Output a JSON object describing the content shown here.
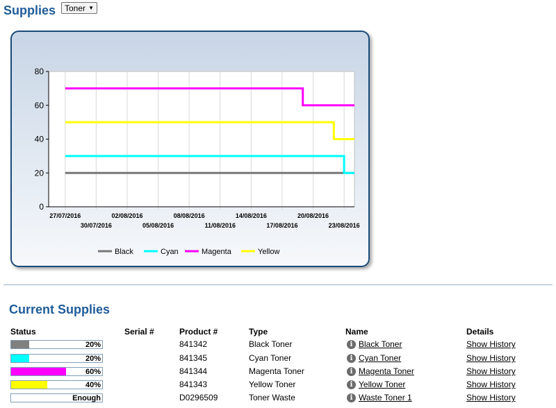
{
  "header": {
    "title": "Supplies",
    "selected_supply_type": "Toner"
  },
  "chart_data": {
    "type": "line",
    "step": true,
    "ylim": [
      0,
      80
    ],
    "yticks": [
      0,
      20,
      40,
      60,
      80
    ],
    "xticks_top": [
      "27/07/2016",
      "02/08/2016",
      "08/08/2016",
      "14/08/2016",
      "20/08/2016"
    ],
    "xticks_bottom": [
      "30/07/2016",
      "05/08/2016",
      "11/08/2016",
      "17/08/2016",
      "23/08/2016"
    ],
    "legend_position": "bottom",
    "grid": true,
    "series": [
      {
        "name": "Black",
        "color": "#777777",
        "points": [
          [
            "27/07/2016",
            20
          ],
          [
            "24/08/2016",
            20
          ]
        ]
      },
      {
        "name": "Cyan",
        "color": "#00ffff",
        "points": [
          [
            "27/07/2016",
            30
          ],
          [
            "23/08/2016",
            30
          ],
          [
            "23/08/2016",
            20
          ],
          [
            "24/08/2016",
            20
          ]
        ]
      },
      {
        "name": "Magenta",
        "color": "#ff00ff",
        "points": [
          [
            "27/07/2016",
            70
          ],
          [
            "19/08/2016",
            70
          ],
          [
            "19/08/2016",
            60
          ],
          [
            "24/08/2016",
            60
          ]
        ]
      },
      {
        "name": "Yellow",
        "color": "#ffff00",
        "points": [
          [
            "27/07/2016",
            50
          ],
          [
            "22/08/2016",
            50
          ],
          [
            "22/08/2016",
            40
          ],
          [
            "24/08/2016",
            40
          ]
        ]
      }
    ]
  },
  "current": {
    "title": "Current Supplies",
    "columns": {
      "status": "Status",
      "serial": "Serial #",
      "product": "Product #",
      "type": "Type",
      "name": "Name",
      "details": "Details"
    },
    "rows": [
      {
        "status_text": "20%",
        "level": 0.2,
        "color": "#808080",
        "serial": "",
        "product": "841342",
        "type": "Black Toner",
        "name": "Black Toner",
        "details": "Show History"
      },
      {
        "status_text": "20%",
        "level": 0.2,
        "color": "#00ffff",
        "serial": "",
        "product": "841345",
        "type": "Cyan Toner",
        "name": "Cyan Toner",
        "details": "Show History"
      },
      {
        "status_text": "60%",
        "level": 0.6,
        "color": "#ff00ff",
        "serial": "",
        "product": "841344",
        "type": "Magenta Toner",
        "name": "Magenta Toner",
        "details": "Show History"
      },
      {
        "status_text": "40%",
        "level": 0.4,
        "color": "#ffff00",
        "serial": "",
        "product": "841343",
        "type": "Yellow Toner",
        "name": "Yellow Toner",
        "details": "Show History"
      },
      {
        "status_text": "Enough",
        "level": 0,
        "color": "#ffffff",
        "serial": "",
        "product": "D0296509",
        "type": "Toner Waste",
        "name": "Waste Toner 1",
        "details": "Show History"
      }
    ]
  }
}
